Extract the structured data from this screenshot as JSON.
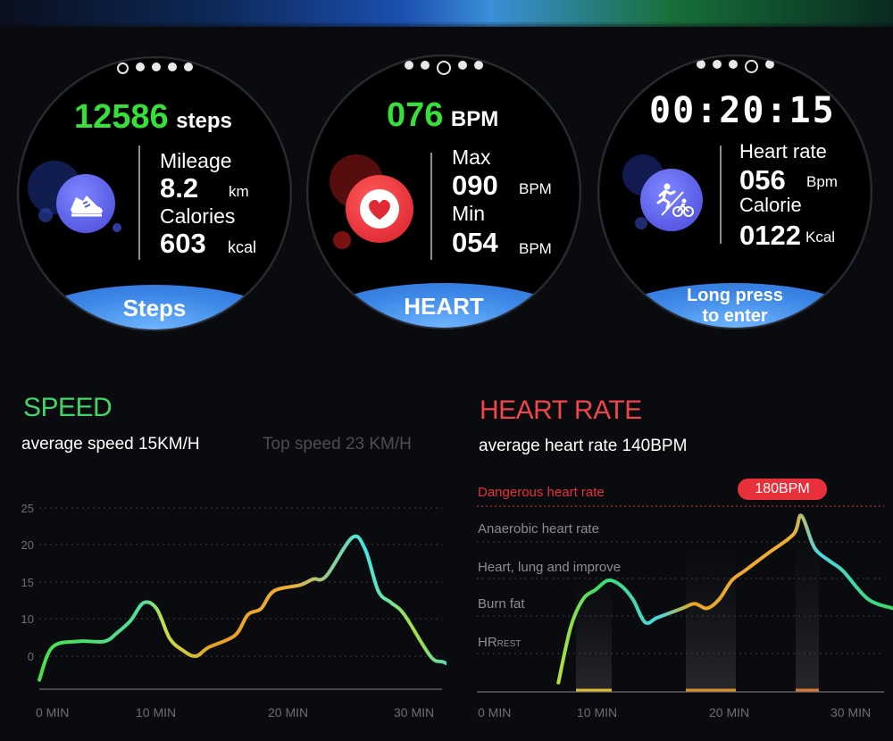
{
  "watches": {
    "steps": {
      "main_value": "12586",
      "main_unit": "steps",
      "mileage_label": "Mileage",
      "mileage_value": "8.2",
      "mileage_unit": "km",
      "calories_label": "Calories",
      "calories_value": "603",
      "calories_unit": "kcal",
      "banner": "Steps",
      "icon": "sneaker-icon"
    },
    "heart": {
      "main_value": "076",
      "main_unit": "BPM",
      "max_label": "Max",
      "max_value": "090",
      "max_unit": "BPM",
      "min_label": "Min",
      "min_value": "054",
      "min_unit": "BPM",
      "banner": "HEART",
      "icon": "heart-icon"
    },
    "sport": {
      "main_value": "00:20:15",
      "hr_label": "Heart rate",
      "hr_value": "056",
      "hr_unit": "Bpm",
      "calorie_label": "Calorie",
      "calorie_value": "0122",
      "calorie_unit": "Kcal",
      "banner_line1": "Long press",
      "banner_line2": "to enter",
      "icon": "run-bike-icon"
    }
  },
  "speed": {
    "title": "SPEED",
    "average": "average speed 15KM/H",
    "top": "Top speed  23 KM/H"
  },
  "heart_rate": {
    "title": "HEART RATE",
    "average": "average heart rate 140BPM",
    "peak_badge": "180BPM",
    "zones": [
      "Dangerous heart rate",
      "Anaerobic heart rate",
      "Heart, lung and improve",
      "Burn fat"
    ],
    "hr_rest_main": "HR",
    "hr_rest_sub": "REST"
  },
  "chart_data": [
    {
      "type": "line",
      "ylim": [
        -4,
        26
      ],
      "yticks": [
        "25",
        "20",
        "15",
        "10",
        "0"
      ],
      "xticks": [
        "0 MIN",
        "10 MIN",
        "20 MIN",
        "30 MIN"
      ],
      "x": [
        0,
        1,
        3,
        5,
        6,
        7,
        8,
        9,
        10,
        11,
        12,
        13,
        15,
        16,
        17,
        18,
        20,
        21,
        22,
        24,
        25,
        26,
        27,
        28,
        30,
        31,
        32
      ],
      "y": [
        -4,
        1.5,
        2.5,
        2.5,
        4,
        6,
        9,
        8,
        3,
        1,
        0,
        1.5,
        3.5,
        7,
        8,
        11,
        12,
        13,
        13.5,
        20,
        18,
        11,
        9,
        7,
        0,
        -1,
        -2
      ]
    },
    {
      "type": "line",
      "ylim": [
        0,
        20
      ],
      "yticks": [],
      "xticks": [
        "0 MIN",
        "10 MIN",
        "20 MIN",
        "30 MIN"
      ],
      "x": [
        5,
        6,
        7,
        8,
        9,
        10,
        11,
        12,
        13,
        15,
        16,
        17,
        18,
        19,
        20,
        21,
        22,
        24,
        24.6,
        25.5,
        26,
        27,
        28,
        30,
        32
      ],
      "y": [
        1,
        7,
        10,
        11,
        12,
        11.5,
        10,
        7.5,
        8,
        9,
        9.5,
        9,
        10,
        12,
        13,
        14,
        15,
        17,
        19,
        16,
        15,
        14,
        13,
        10,
        9
      ]
    }
  ],
  "colors": {
    "green": "#35e03a",
    "cyan": "#30c8f5",
    "banner_blue": "#3c86e6",
    "danger_red": "#e8303a"
  }
}
